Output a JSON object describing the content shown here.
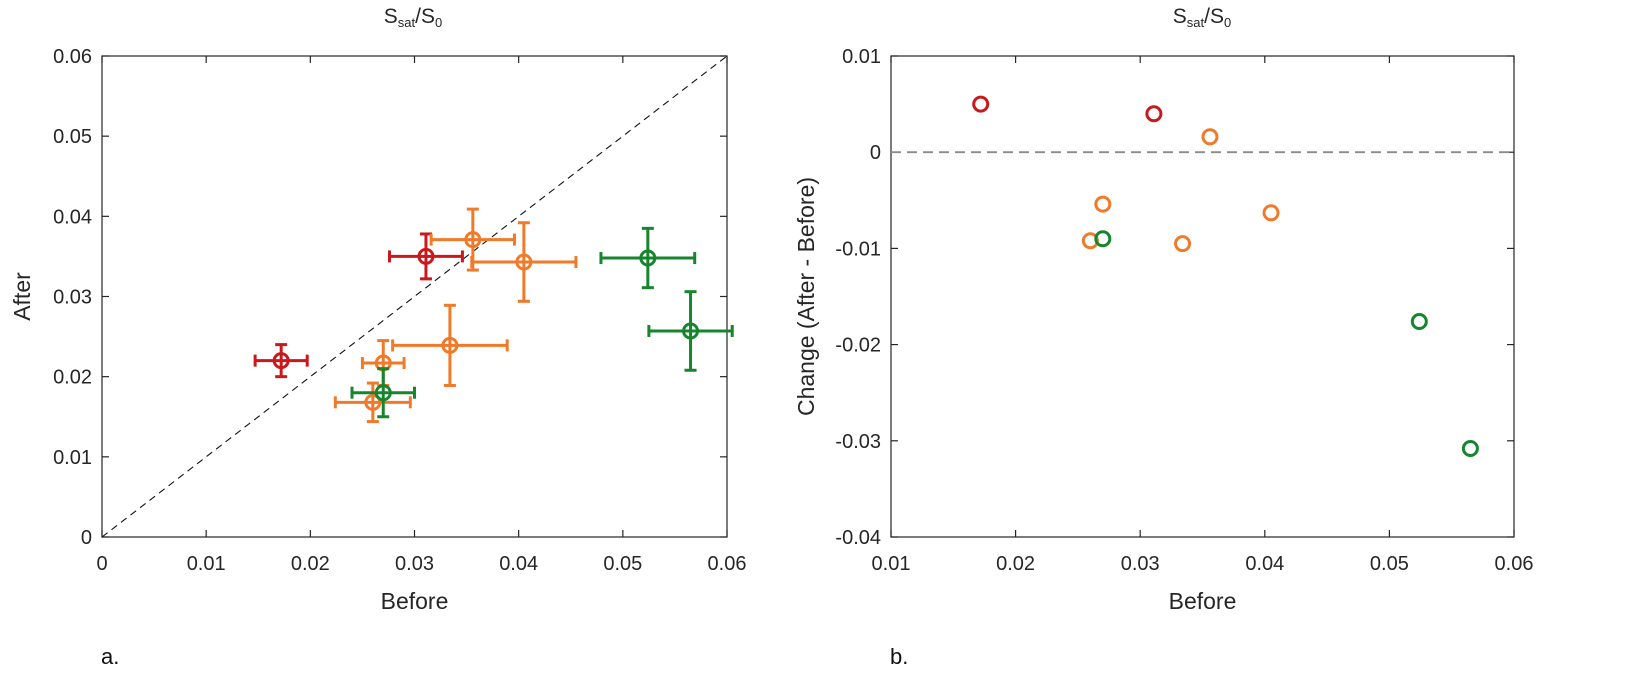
{
  "colors": {
    "red": "#c8191d",
    "orange": "#f07a2a",
    "green": "#17852e",
    "axis": "#262626",
    "refline_a": "#111111",
    "refline_b": "#8c8c8c"
  },
  "chart_data": [
    {
      "panel": "a.",
      "type": "scatter",
      "title": {
        "main": "S",
        "sub1": "sat",
        "mid": "/S",
        "sub2": "0"
      },
      "xlabel": "Before",
      "ylabel": "After",
      "xlim": [
        0,
        0.06
      ],
      "ylim": [
        0,
        0.06
      ],
      "xticks": [
        "0",
        "0.01",
        "0.02",
        "0.03",
        "0.04",
        "0.05",
        "0.06"
      ],
      "yticks": [
        "0",
        "0.01",
        "0.02",
        "0.03",
        "0.04",
        "0.05",
        "0.06"
      ],
      "reference_line": "y = x (dashed)",
      "points": [
        {
          "group": "red",
          "x": 0.0172,
          "y": 0.022,
          "xerr": 0.0025,
          "yerr": 0.002
        },
        {
          "group": "red",
          "x": 0.0311,
          "y": 0.035,
          "xerr": 0.0035,
          "yerr": 0.0028
        },
        {
          "group": "orange",
          "x": 0.0356,
          "y": 0.0371,
          "xerr": 0.004,
          "yerr": 0.0038
        },
        {
          "group": "orange",
          "x": 0.0405,
          "y": 0.0343,
          "xerr": 0.005,
          "yerr": 0.0049
        },
        {
          "group": "orange",
          "x": 0.0334,
          "y": 0.0239,
          "xerr": 0.0055,
          "yerr": 0.005
        },
        {
          "group": "orange",
          "x": 0.027,
          "y": 0.0217,
          "xerr": 0.002,
          "yerr": 0.0028
        },
        {
          "group": "orange",
          "x": 0.026,
          "y": 0.0168,
          "xerr": 0.0036,
          "yerr": 0.0024
        },
        {
          "group": "green",
          "x": 0.027,
          "y": 0.018,
          "xerr": 0.003,
          "yerr": 0.003
        },
        {
          "group": "green",
          "x": 0.0524,
          "y": 0.0348,
          "xerr": 0.0045,
          "yerr": 0.0037
        },
        {
          "group": "green",
          "x": 0.0565,
          "y": 0.0257,
          "xerr": 0.004,
          "yerr": 0.0049
        }
      ]
    },
    {
      "panel": "b.",
      "type": "scatter",
      "title": {
        "main": "S",
        "sub1": "sat",
        "mid": "/S",
        "sub2": "0"
      },
      "xlabel": "Before",
      "ylabel": "Change (After - Before)",
      "xlim": [
        0.01,
        0.06
      ],
      "ylim": [
        -0.04,
        0.01
      ],
      "xticks": [
        "0.01",
        "0.02",
        "0.03",
        "0.04",
        "0.05",
        "0.06"
      ],
      "yticks": [
        "-0.04",
        "-0.03",
        "-0.02",
        "-0.01",
        "0",
        "0.01"
      ],
      "reference_line": "y = 0 (dashed)",
      "points": [
        {
          "group": "red",
          "x": 0.0172,
          "y": 0.005
        },
        {
          "group": "red",
          "x": 0.0311,
          "y": 0.004
        },
        {
          "group": "orange",
          "x": 0.0356,
          "y": 0.0016
        },
        {
          "group": "orange",
          "x": 0.027,
          "y": -0.0054
        },
        {
          "group": "orange",
          "x": 0.0405,
          "y": -0.0063
        },
        {
          "group": "orange",
          "x": 0.026,
          "y": -0.0092
        },
        {
          "group": "orange",
          "x": 0.0334,
          "y": -0.0095
        },
        {
          "group": "green",
          "x": 0.027,
          "y": -0.009
        },
        {
          "group": "green",
          "x": 0.0524,
          "y": -0.0176
        },
        {
          "group": "green",
          "x": 0.0565,
          "y": -0.0308
        }
      ]
    }
  ]
}
